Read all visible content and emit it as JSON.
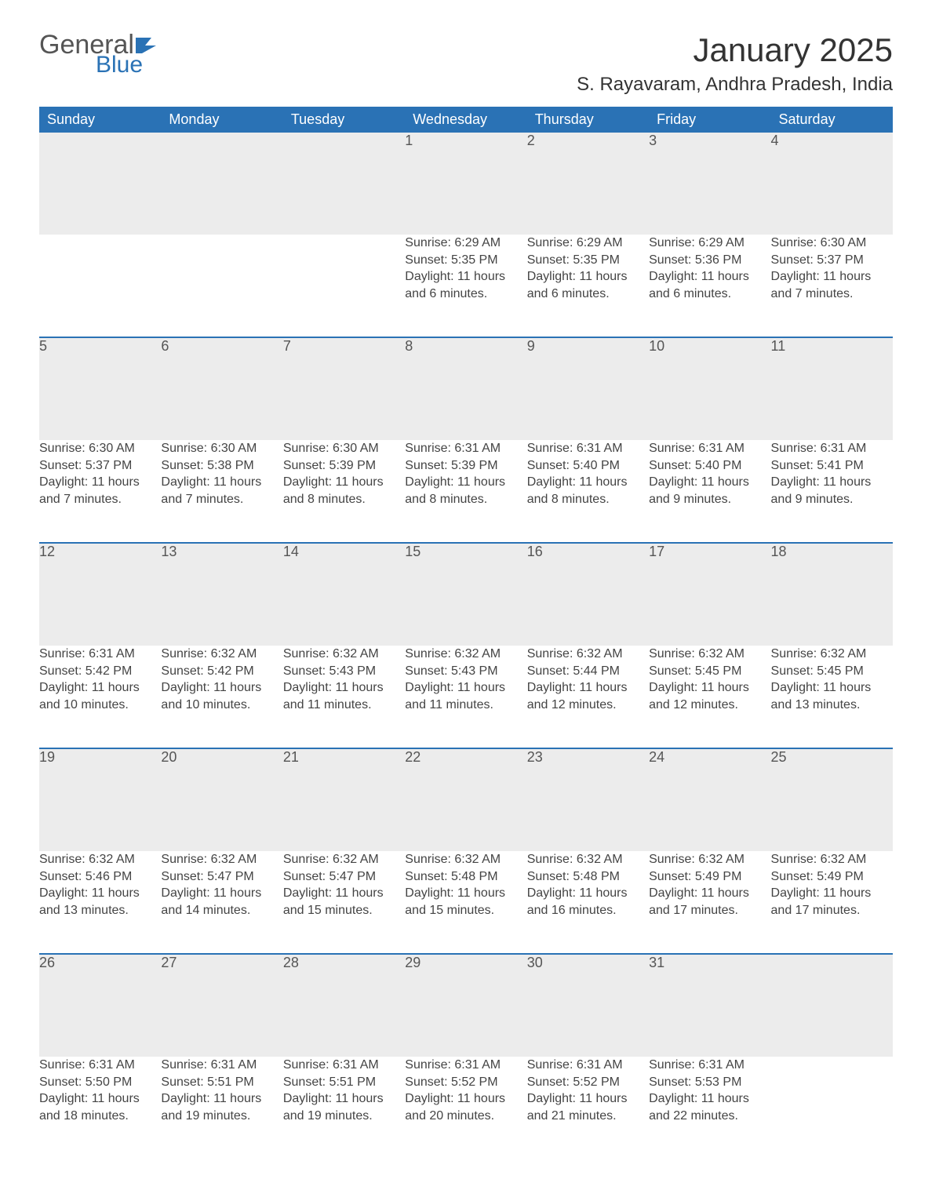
{
  "logo": {
    "general": "General",
    "blue": "Blue"
  },
  "header": {
    "month_title": "January 2025",
    "location": "S. Rayavaram, Andhra Pradesh, India"
  },
  "colors": {
    "header_bg": "#2a72b5",
    "header_text": "#ffffff",
    "daynum_bg": "#ececec",
    "row_border": "#2a72b5",
    "body_text": "#444444"
  },
  "weekdays": [
    "Sunday",
    "Monday",
    "Tuesday",
    "Wednesday",
    "Thursday",
    "Friday",
    "Saturday"
  ],
  "weeks": [
    [
      null,
      null,
      null,
      {
        "n": "1",
        "sr": "6:29 AM",
        "ss": "5:35 PM",
        "dl": "11 hours and 6 minutes."
      },
      {
        "n": "2",
        "sr": "6:29 AM",
        "ss": "5:35 PM",
        "dl": "11 hours and 6 minutes."
      },
      {
        "n": "3",
        "sr": "6:29 AM",
        "ss": "5:36 PM",
        "dl": "11 hours and 6 minutes."
      },
      {
        "n": "4",
        "sr": "6:30 AM",
        "ss": "5:37 PM",
        "dl": "11 hours and 7 minutes."
      }
    ],
    [
      {
        "n": "5",
        "sr": "6:30 AM",
        "ss": "5:37 PM",
        "dl": "11 hours and 7 minutes."
      },
      {
        "n": "6",
        "sr": "6:30 AM",
        "ss": "5:38 PM",
        "dl": "11 hours and 7 minutes."
      },
      {
        "n": "7",
        "sr": "6:30 AM",
        "ss": "5:39 PM",
        "dl": "11 hours and 8 minutes."
      },
      {
        "n": "8",
        "sr": "6:31 AM",
        "ss": "5:39 PM",
        "dl": "11 hours and 8 minutes."
      },
      {
        "n": "9",
        "sr": "6:31 AM",
        "ss": "5:40 PM",
        "dl": "11 hours and 8 minutes."
      },
      {
        "n": "10",
        "sr": "6:31 AM",
        "ss": "5:40 PM",
        "dl": "11 hours and 9 minutes."
      },
      {
        "n": "11",
        "sr": "6:31 AM",
        "ss": "5:41 PM",
        "dl": "11 hours and 9 minutes."
      }
    ],
    [
      {
        "n": "12",
        "sr": "6:31 AM",
        "ss": "5:42 PM",
        "dl": "11 hours and 10 minutes."
      },
      {
        "n": "13",
        "sr": "6:32 AM",
        "ss": "5:42 PM",
        "dl": "11 hours and 10 minutes."
      },
      {
        "n": "14",
        "sr": "6:32 AM",
        "ss": "5:43 PM",
        "dl": "11 hours and 11 minutes."
      },
      {
        "n": "15",
        "sr": "6:32 AM",
        "ss": "5:43 PM",
        "dl": "11 hours and 11 minutes."
      },
      {
        "n": "16",
        "sr": "6:32 AM",
        "ss": "5:44 PM",
        "dl": "11 hours and 12 minutes."
      },
      {
        "n": "17",
        "sr": "6:32 AM",
        "ss": "5:45 PM",
        "dl": "11 hours and 12 minutes."
      },
      {
        "n": "18",
        "sr": "6:32 AM",
        "ss": "5:45 PM",
        "dl": "11 hours and 13 minutes."
      }
    ],
    [
      {
        "n": "19",
        "sr": "6:32 AM",
        "ss": "5:46 PM",
        "dl": "11 hours and 13 minutes."
      },
      {
        "n": "20",
        "sr": "6:32 AM",
        "ss": "5:47 PM",
        "dl": "11 hours and 14 minutes."
      },
      {
        "n": "21",
        "sr": "6:32 AM",
        "ss": "5:47 PM",
        "dl": "11 hours and 15 minutes."
      },
      {
        "n": "22",
        "sr": "6:32 AM",
        "ss": "5:48 PM",
        "dl": "11 hours and 15 minutes."
      },
      {
        "n": "23",
        "sr": "6:32 AM",
        "ss": "5:48 PM",
        "dl": "11 hours and 16 minutes."
      },
      {
        "n": "24",
        "sr": "6:32 AM",
        "ss": "5:49 PM",
        "dl": "11 hours and 17 minutes."
      },
      {
        "n": "25",
        "sr": "6:32 AM",
        "ss": "5:49 PM",
        "dl": "11 hours and 17 minutes."
      }
    ],
    [
      {
        "n": "26",
        "sr": "6:31 AM",
        "ss": "5:50 PM",
        "dl": "11 hours and 18 minutes."
      },
      {
        "n": "27",
        "sr": "6:31 AM",
        "ss": "5:51 PM",
        "dl": "11 hours and 19 minutes."
      },
      {
        "n": "28",
        "sr": "6:31 AM",
        "ss": "5:51 PM",
        "dl": "11 hours and 19 minutes."
      },
      {
        "n": "29",
        "sr": "6:31 AM",
        "ss": "5:52 PM",
        "dl": "11 hours and 20 minutes."
      },
      {
        "n": "30",
        "sr": "6:31 AM",
        "ss": "5:52 PM",
        "dl": "11 hours and 21 minutes."
      },
      {
        "n": "31",
        "sr": "6:31 AM",
        "ss": "5:53 PM",
        "dl": "11 hours and 22 minutes."
      },
      null
    ]
  ],
  "labels": {
    "sunrise": "Sunrise: ",
    "sunset": "Sunset: ",
    "daylight": "Daylight: "
  }
}
